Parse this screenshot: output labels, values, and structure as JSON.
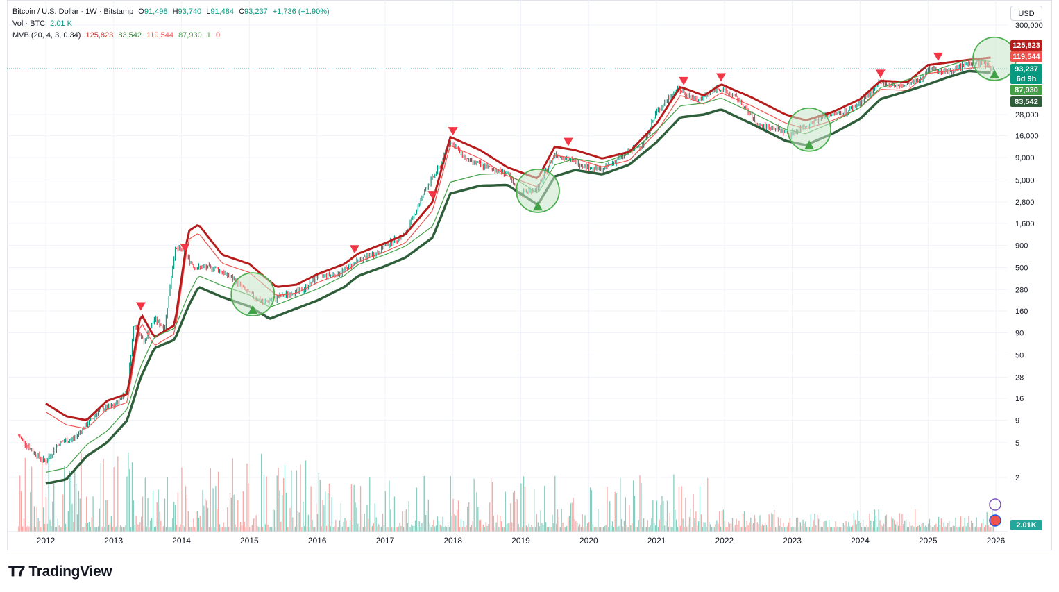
{
  "header": {
    "symbol_line": {
      "title": "Bitcoin / U.S. Dollar · 1W · Bitstamp",
      "o_label": "O",
      "o_value": "91,498",
      "h_label": "H",
      "h_value": "93,740",
      "l_label": "L",
      "l_value": "91,484",
      "c_label": "C",
      "c_value": "93,237",
      "change": "+1,736 (+1.90%)"
    },
    "volume_line": {
      "label": "Vol · BTC",
      "value": "2.01 K"
    },
    "indicator_line": {
      "label": "MVB (20, 4, 3, 0.34)",
      "v1": "125,823",
      "v2": "83,542",
      "v3": "119,544",
      "v4": "87,930",
      "v5": "1",
      "v6": "0"
    }
  },
  "currency_button": "USD",
  "branding": {
    "logo_text": "TradingView"
  },
  "price_tags": {
    "upper_band": "125,823",
    "upper_inner": "119,544",
    "last_price": "93,237",
    "countdown": "6d 9h",
    "lower_inner": "87,930",
    "lower_band": "83,542",
    "volume": "2.01K"
  },
  "colors": {
    "up": "#089981",
    "down": "#f23645",
    "upper_band": "#b71c1c",
    "upper_inner": "#ef5350",
    "lower_band": "#2e5e3a",
    "lower_inner": "#43a047",
    "circle_fill": "#c8e6c9",
    "circle_stroke": "#4caf50",
    "sell_marker": "#f23645",
    "buy_marker": "#43a047"
  },
  "chart_data": {
    "type": "line",
    "title": "",
    "xlabel": "",
    "ylabel": "",
    "yscale": "log",
    "grid": true,
    "x_ticks": [
      "2012",
      "2013",
      "2014",
      "2015",
      "2016",
      "2017",
      "2018",
      "2019",
      "2020",
      "2021",
      "2022",
      "2023",
      "2024",
      "2025",
      "2026"
    ],
    "y_ticks": [
      "2",
      "5",
      "9",
      "16",
      "28",
      "50",
      "90",
      "160",
      "280",
      "500",
      "900",
      "1,600",
      "2,800",
      "5,000",
      "9,000",
      "16,000",
      "28,000",
      "300,000"
    ],
    "series": [
      {
        "x": [
          2011.6,
          2011.8,
          2012.0,
          2012.2,
          2012.4,
          2012.6,
          2012.8,
          2013.0,
          2013.2,
          2013.3,
          2013.45,
          2013.6,
          2013.75,
          2013.9,
          2014.0,
          2014.2,
          2014.5,
          2014.8,
          2015.0,
          2015.2,
          2015.5,
          2015.8,
          2016.0,
          2016.3,
          2016.6,
          2016.9,
          2017.0,
          2017.3,
          2017.6,
          2017.8,
          2017.96,
          2018.2,
          2018.5,
          2018.8,
          2018.96,
          2019.25,
          2019.5,
          2019.8,
          2020.0,
          2020.2,
          2020.5,
          2020.8,
          2021.0,
          2021.3,
          2021.6,
          2021.9,
          2022.2,
          2022.5,
          2022.8,
          2022.96,
          2023.25,
          2023.5,
          2023.8,
          2024.0,
          2024.3,
          2024.6,
          2024.9,
          2025.0,
          2025.3,
          2025.6,
          2025.8,
          2025.96
        ],
        "y": [
          6,
          4,
          3,
          5,
          5.5,
          8,
          12,
          13,
          20,
          120,
          70,
          130,
          100,
          800,
          800,
          500,
          500,
          350,
          250,
          200,
          240,
          280,
          400,
          420,
          600,
          750,
          900,
          1200,
          4000,
          7000,
          14000,
          8500,
          7000,
          6000,
          3500,
          4000,
          10000,
          8000,
          7000,
          6500,
          9500,
          13000,
          30000,
          55000,
          40000,
          57000,
          42000,
          21000,
          19000,
          16500,
          22000,
          28000,
          30000,
          38000,
          65000,
          58000,
          70000,
          95000,
          85000,
          108000,
          110000,
          93237
        ]
      },
      {
        "name": "",
        "x": [
          2012.0,
          2012.3,
          2012.6,
          2012.9,
          2013.2,
          2013.4,
          2013.6,
          2013.9,
          2014.1,
          2014.25,
          2014.6,
          2015.0,
          2015.4,
          2015.7,
          2016.0,
          2016.4,
          2016.6,
          2017.0,
          2017.3,
          2017.7,
          2017.96,
          2018.4,
          2018.8,
          2019.25,
          2019.5,
          2019.8,
          2020.2,
          2020.6,
          2021.0,
          2021.35,
          2021.7,
          2021.95,
          2022.4,
          2022.9,
          2023.2,
          2023.6,
          2024.0,
          2024.3,
          2024.7,
          2025.0,
          2025.3,
          2025.6,
          2025.96
        ],
        "y": [
          14,
          10,
          9,
          15,
          18,
          150,
          80,
          110,
          1300,
          1550,
          700,
          550,
          300,
          320,
          420,
          550,
          720,
          950,
          1200,
          2800,
          15500,
          11000,
          7000,
          5200,
          12000,
          11000,
          8800,
          10500,
          22000,
          58000,
          46000,
          62000,
          44000,
          28000,
          24000,
          30000,
          42000,
          68000,
          66000,
          103000,
          110000,
          118000,
          125823
        ]
      },
      {
        "name": "",
        "x": [
          2012.0,
          2012.3,
          2012.6,
          2012.9,
          2013.2,
          2013.4,
          2013.6,
          2013.9,
          2014.1,
          2014.25,
          2014.6,
          2015.0,
          2015.3,
          2015.6,
          2016.0,
          2016.4,
          2016.6,
          2017.0,
          2017.3,
          2017.7,
          2017.96,
          2018.4,
          2018.8,
          2019.25,
          2019.5,
          2019.8,
          2020.2,
          2020.6,
          2021.0,
          2021.35,
          2021.7,
          2021.95,
          2022.4,
          2022.9,
          2023.2,
          2023.6,
          2024.0,
          2024.3,
          2024.7,
          2025.0,
          2025.3,
          2025.6,
          2025.96
        ],
        "y": [
          1.7,
          1.9,
          3.5,
          5,
          9,
          28,
          60,
          75,
          180,
          300,
          230,
          180,
          130,
          160,
          210,
          300,
          400,
          520,
          650,
          1100,
          3500,
          4300,
          4400,
          2600,
          5500,
          6500,
          5800,
          7500,
          13500,
          26000,
          28000,
          32000,
          22000,
          14000,
          12500,
          17000,
          25000,
          42000,
          52000,
          62000,
          75000,
          88000,
          83542
        ]
      }
    ],
    "markers": {
      "sell": [
        "2013.4",
        "2014.05",
        "2016.55",
        "2017.7",
        "2018.0",
        "2019.7",
        "2021.4",
        "2021.95",
        "2024.3",
        "2025.15"
      ],
      "buy": [
        "2015.05",
        "2019.25",
        "2023.25",
        "2025.98"
      ]
    },
    "highlight_circles": [
      "2015.05",
      "2019.25",
      "2023.25",
      "2025.98"
    ],
    "last_price": 93237
  }
}
